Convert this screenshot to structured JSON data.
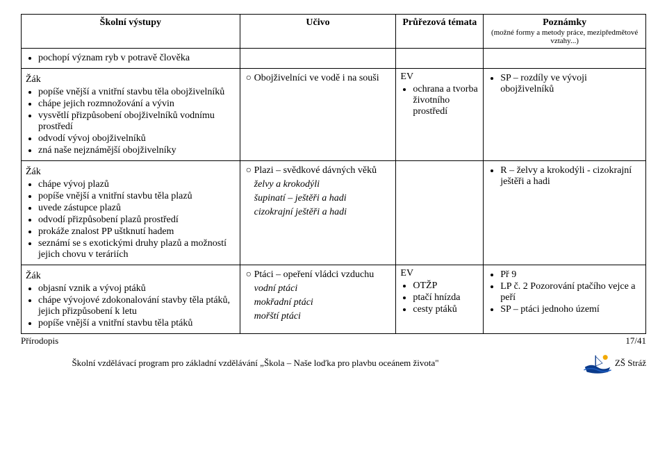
{
  "header": {
    "col1": "Školní výstupy",
    "col2": "Učivo",
    "col3": "Průřezová témata",
    "col4": "Poznámky",
    "col4_sub": "(možné formy a metody práce, mezipředmětové vztahy...)"
  },
  "row0": {
    "outcome": "pochopí význam ryb v potravě člověka"
  },
  "row1": {
    "zak": "Žák",
    "outcomes": [
      "popíše vnější a vnitřní stavbu těla obojživelníků",
      "chápe jejich rozmnožování a vývin",
      "vysvětlí přizpůsobení obojživelníků vodnímu prostředí",
      "odvodí vývoj obojživelníků",
      "zná naše nejznámější obojživelníky"
    ],
    "curriculum": "Obojživelníci ve vodě i na souši",
    "topics_label": "EV",
    "topics": [
      "ochrana a tvorba životního prostředí"
    ],
    "notes": [
      "SP – rozdíly ve vývoji obojživelníků"
    ]
  },
  "row2": {
    "zak": "Žák",
    "outcomes": [
      "chápe vývoj plazů",
      "popíše vnější a vnitřní stavbu těla plazů",
      "uvede zástupce plazů",
      "odvodí přizpůsobení plazů prostředí",
      "prokáže znalost PP uštknutí hadem",
      "seznámí se s exotickými druhy plazů a možností jejich chovu v teráriích"
    ],
    "curriculum_head": "Plazi – svědkové dávných věků",
    "curriculum_sub": [
      "želvy a krokodýli",
      "šupinatí – ještěři a hadi",
      "cizokrajní ještěři a hadi"
    ],
    "notes": [
      "R – želvy a krokodýli - cizokrajní ještěři a hadi"
    ]
  },
  "row3": {
    "zak": "Žák",
    "outcomes": [
      "objasní vznik a vývoj ptáků",
      "chápe vývojové zdokonalování stavby těla ptáků, jejich přizpůsobení k letu",
      "popíše vnější a vnitřní stavbu těla ptáků"
    ],
    "curriculum_head": "Ptáci – opeření vládci vzduchu",
    "curriculum_sub": [
      "vodní ptáci",
      "mokřadní ptáci",
      "mořští ptáci"
    ],
    "topics_label": "EV",
    "topics": [
      "OTŽP",
      "ptačí hnízda",
      "cesty ptáků"
    ],
    "notes": [
      "Př 9",
      "LP č. 2 Pozorování ptačího vejce  a peří",
      "SP – ptáci jednoho území"
    ]
  },
  "footer": {
    "subject": "Přírodopis",
    "page": "17/41",
    "program": "Školní vzdělávací program pro základní vzdělávání „Škola – Naše loďka pro plavbu oceánem života\"",
    "school": "ZŠ Stráž"
  },
  "colwidths": {
    "c1": "35%",
    "c2": "25%",
    "c3": "14%",
    "c4": "26%"
  },
  "colors": {
    "text": "#000000",
    "bg": "#ffffff",
    "boat_hull": "#0b3b8c",
    "boat_wave": "#1e5fc4",
    "boat_sun": "#f2a900"
  }
}
